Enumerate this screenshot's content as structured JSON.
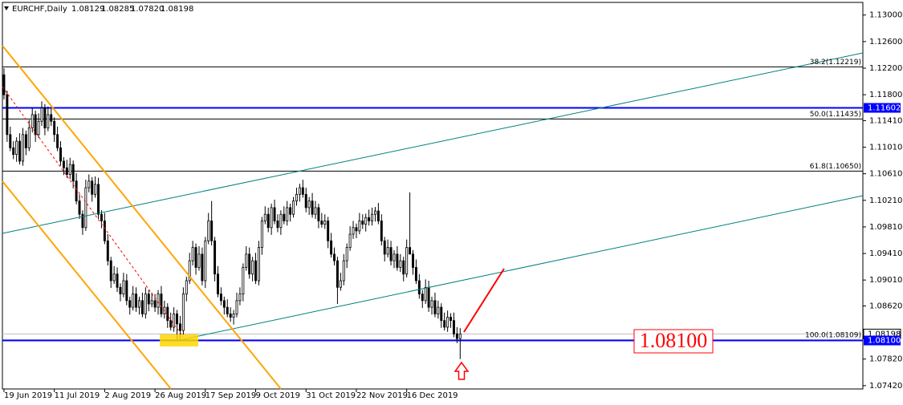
{
  "chart_data": {
    "type": "candlestick",
    "header": {
      "symbol": "EURCHF,Daily",
      "ohlc": [
        "1.08129",
        "1.08285",
        "1.07820",
        "1.08198"
      ]
    },
    "xlim": [
      -0.5,
      273
    ],
    "ylim": [
      1.0737,
      1.1319
    ],
    "xticks": [
      {
        "value": 0,
        "label": "19 Jun 2019"
      },
      {
        "value": 16,
        "label": "11 Jul 2019"
      },
      {
        "value": 32,
        "label": "2 Aug 2019"
      },
      {
        "value": 48,
        "label": "26 Aug 2019"
      },
      {
        "value": 64,
        "label": "17 Sep 2019"
      },
      {
        "value": 80,
        "label": "9 Oct 2019"
      },
      {
        "value": 96,
        "label": "31 Oct 2019"
      },
      {
        "value": 112,
        "label": "22 Nov 2019"
      },
      {
        "value": 128,
        "label": "16 Dec 2019"
      }
    ],
    "yticks": [
      {
        "value": 1.13,
        "label": "1.13000"
      },
      {
        "value": 1.126,
        "label": "1.12600"
      },
      {
        "value": 1.122,
        "label": "1.12200"
      },
      {
        "value": 1.118,
        "label": "1.11800"
      },
      {
        "value": 1.1141,
        "label": "1.11410"
      },
      {
        "value": 1.1101,
        "label": "1.11010"
      },
      {
        "value": 1.1061,
        "label": "1.10610"
      },
      {
        "value": 1.1021,
        "label": "1.10210"
      },
      {
        "value": 1.0981,
        "label": "1.09810"
      },
      {
        "value": 1.0941,
        "label": "1.09410"
      },
      {
        "value": 1.0901,
        "label": "1.09010"
      },
      {
        "value": 1.0862,
        "label": "1.08620"
      },
      {
        "value": 1.0782,
        "label": "1.07820"
      },
      {
        "value": 1.0742,
        "label": "1.07420"
      }
    ],
    "fib_levels": [
      {
        "value": 1.12219,
        "label": "38.2(1.12219)"
      },
      {
        "value": 1.11435,
        "label": "50.0(1.11435)"
      },
      {
        "value": 1.1065,
        "label": "61.8(1.10650)"
      },
      {
        "value": 1.08109,
        "label": "100.0(1.08109)"
      }
    ],
    "levels": [
      {
        "value": 1.11602,
        "label": "1.11602",
        "color": "#0000ff"
      },
      {
        "value": 1.081,
        "label": "1.08100",
        "color": "#0000ff"
      }
    ],
    "price_line": {
      "value": 1.08198,
      "label": "1.08198"
    },
    "annotation": "1.08100",
    "series": [
      {
        "name": "EURCHF,Daily",
        "up_color": "#ffffff",
        "down_color": "#000000",
        "ohlc": [
          [
            1.121,
            1.122,
            1.1173,
            1.118
          ],
          [
            1.118,
            1.1186,
            1.1109,
            1.112
          ],
          [
            1.112,
            1.1132,
            1.1095,
            1.11
          ],
          [
            1.11,
            1.111,
            1.1083,
            1.109
          ],
          [
            1.109,
            1.1116,
            1.1079,
            1.111
          ],
          [
            1.111,
            1.1122,
            1.1075,
            1.108
          ],
          [
            1.108,
            1.113,
            1.1073,
            1.112
          ],
          [
            1.112,
            1.1126,
            1.1089,
            1.11
          ],
          [
            1.11,
            1.1142,
            1.1095,
            1.113
          ],
          [
            1.113,
            1.116,
            1.1123,
            1.115
          ],
          [
            1.115,
            1.1156,
            1.1109,
            1.112
          ],
          [
            1.112,
            1.1152,
            1.1115,
            1.114
          ],
          [
            1.114,
            1.117,
            1.1133,
            1.116
          ],
          [
            1.116,
            1.1166,
            1.1119,
            1.113
          ],
          [
            1.113,
            1.1162,
            1.1125,
            1.115
          ],
          [
            1.115,
            1.116,
            1.1133,
            1.114
          ],
          [
            1.114,
            1.1146,
            1.1109,
            1.112
          ],
          [
            1.112,
            1.1132,
            1.1095,
            1.11
          ],
          [
            1.11,
            1.111,
            1.1073,
            1.108
          ],
          [
            1.108,
            1.1086,
            1.1059,
            1.107
          ],
          [
            1.107,
            1.1082,
            1.1055,
            1.106
          ],
          [
            1.106,
            1.1085,
            1.1053,
            1.1075
          ],
          [
            1.1075,
            1.1081,
            1.1039,
            1.105
          ],
          [
            1.105,
            1.1062,
            1.1015,
            1.102
          ],
          [
            1.102,
            1.103,
            1.0993,
            1.1
          ],
          [
            1.1,
            1.1006,
            1.0969,
            1.098
          ],
          [
            1.098,
            1.1052,
            1.0975,
            1.104
          ],
          [
            1.104,
            1.106,
            1.1033,
            1.105
          ],
          [
            1.105,
            1.1056,
            1.1019,
            1.103
          ],
          [
            1.103,
            1.1057,
            1.1025,
            1.1045
          ],
          [
            1.1045,
            1.1055,
            1.0993,
            1.1
          ],
          [
            1.1,
            1.1006,
            1.0979,
            1.099
          ],
          [
            1.099,
            1.1002,
            1.0955,
            1.096
          ],
          [
            1.096,
            1.097,
            1.0923,
            1.093
          ],
          [
            1.093,
            1.0936,
            1.0889,
            1.09
          ],
          [
            1.09,
            1.0922,
            1.0895,
            1.091
          ],
          [
            1.091,
            1.092,
            1.0883,
            1.089
          ],
          [
            1.089,
            1.0896,
            1.0869,
            1.088
          ],
          [
            1.088,
            1.0912,
            1.0875,
            1.09
          ],
          [
            1.09,
            1.091,
            1.0863,
            1.087
          ],
          [
            1.087,
            1.0876,
            1.0849,
            1.086
          ],
          [
            1.086,
            1.0892,
            1.0855,
            1.088
          ],
          [
            1.088,
            1.089,
            1.0853,
            1.086
          ],
          [
            1.086,
            1.0876,
            1.0849,
            1.087
          ],
          [
            1.087,
            1.0882,
            1.0845,
            1.085
          ],
          [
            1.085,
            1.089,
            1.0843,
            1.088
          ],
          [
            1.088,
            1.0886,
            1.0854,
            1.0865
          ],
          [
            1.0865,
            1.0882,
            1.086,
            1.087
          ],
          [
            1.087,
            1.088,
            1.0853,
            1.086
          ],
          [
            1.086,
            1.0886,
            1.0849,
            1.088
          ],
          [
            1.088,
            1.0892,
            1.0845,
            1.085
          ],
          [
            1.085,
            1.087,
            1.0843,
            1.086
          ],
          [
            1.086,
            1.0866,
            1.0829,
            1.084
          ],
          [
            1.084,
            1.0852,
            1.0825,
            1.083
          ],
          [
            1.083,
            1.086,
            1.0823,
            1.085
          ],
          [
            1.085,
            1.0856,
            1.0812,
            1.0835
          ],
          [
            1.0835,
            1.0847,
            1.0811,
            1.0825
          ],
          [
            1.0825,
            1.089,
            1.0818,
            1.088
          ],
          [
            1.088,
            1.0906,
            1.0869,
            1.09
          ],
          [
            1.09,
            1.0942,
            1.0895,
            1.093
          ],
          [
            1.093,
            1.096,
            1.0923,
            1.095
          ],
          [
            1.095,
            1.0956,
            1.0909,
            1.092
          ],
          [
            1.092,
            1.0952,
            1.0915,
            1.094
          ],
          [
            1.094,
            1.095,
            1.0893,
            1.09
          ],
          [
            1.09,
            1.0966,
            1.0889,
            1.096
          ],
          [
            1.096,
            1.1002,
            1.0955,
            1.099
          ],
          [
            1.099,
            1.102,
            1.0953,
            1.096
          ],
          [
            1.096,
            1.0966,
            1.0899,
            1.091
          ],
          [
            1.091,
            1.0922,
            1.0875,
            1.088
          ],
          [
            1.088,
            1.089,
            1.0863,
            1.087
          ],
          [
            1.087,
            1.0876,
            1.0849,
            1.086
          ],
          [
            1.086,
            1.0872,
            1.0845,
            1.085
          ],
          [
            1.085,
            1.086,
            1.0838,
            1.0845
          ],
          [
            1.0845,
            1.0856,
            1.0834,
            1.085
          ],
          [
            1.085,
            1.0882,
            1.0845,
            1.087
          ],
          [
            1.087,
            1.089,
            1.0863,
            1.088
          ],
          [
            1.088,
            1.0926,
            1.0869,
            1.092
          ],
          [
            1.092,
            1.0952,
            1.0915,
            1.094
          ],
          [
            1.094,
            1.095,
            1.0903,
            1.091
          ],
          [
            1.091,
            1.0936,
            1.0899,
            1.093
          ],
          [
            1.093,
            1.0942,
            1.0895,
            1.09
          ],
          [
            1.09,
            1.096,
            1.0893,
            1.095
          ],
          [
            1.095,
            1.0996,
            1.0939,
            1.099
          ],
          [
            1.099,
            1.1012,
            1.0985,
            1.1
          ],
          [
            1.1,
            1.101,
            1.0973,
            1.098
          ],
          [
            1.098,
            1.1016,
            1.0969,
            1.101
          ],
          [
            1.101,
            1.1022,
            1.0985,
            1.099
          ],
          [
            1.099,
            1.1,
            1.0973,
            1.098
          ],
          [
            1.098,
            1.1006,
            1.0969,
            1.1
          ],
          [
            1.1,
            1.1012,
            1.0985,
            1.099
          ],
          [
            1.099,
            1.102,
            1.0983,
            1.101
          ],
          [
            1.101,
            1.1016,
            1.0989,
            1.1
          ],
          [
            1.1,
            1.1026,
            1.0995,
            1.102
          ],
          [
            1.102,
            1.104,
            1.1013,
            1.103
          ],
          [
            1.103,
            1.1046,
            1.1019,
            1.104
          ],
          [
            1.104,
            1.1052,
            1.1025,
            1.103
          ],
          [
            1.103,
            1.104,
            1.1003,
            1.101
          ],
          [
            1.101,
            1.1026,
            1.0999,
            1.102
          ],
          [
            1.102,
            1.1032,
            1.0995,
            1.1
          ],
          [
            1.1,
            1.102,
            1.0993,
            1.101
          ],
          [
            1.101,
            1.1016,
            1.0979,
            1.099
          ],
          [
            1.099,
            1.1002,
            1.098,
            1.0985
          ],
          [
            1.0985,
            1.1,
            1.0978,
            1.099
          ],
          [
            1.099,
            1.0996,
            1.0949,
            1.096
          ],
          [
            1.096,
            1.0972,
            1.0935,
            1.094
          ],
          [
            1.094,
            1.095,
            1.0923,
            1.093
          ],
          [
            1.093,
            1.0936,
            1.0865,
            1.089
          ],
          [
            1.089,
            1.0912,
            1.0885,
            1.09
          ],
          [
            1.09,
            1.094,
            1.0893,
            1.093
          ],
          [
            1.093,
            1.0956,
            1.0919,
            1.095
          ],
          [
            1.095,
            1.0982,
            1.0945,
            1.097
          ],
          [
            1.097,
            1.099,
            1.0963,
            1.098
          ],
          [
            1.098,
            1.0986,
            1.0964,
            1.0975
          ],
          [
            1.0975,
            1.1002,
            1.097,
            1.099
          ],
          [
            1.099,
            1.1,
            1.0978,
            1.0985
          ],
          [
            1.0985,
            1.1001,
            1.0974,
            1.0995
          ],
          [
            1.0995,
            1.1007,
            1.0983,
            1.099
          ],
          [
            1.099,
            1.101,
            1.0983,
            1.1
          ],
          [
            1.1,
            1.1011,
            1.0989,
            1.1005
          ],
          [
            1.1005,
            1.1017,
            1.0985,
            1.099
          ],
          [
            1.099,
            1.1,
            1.0953,
            1.096
          ],
          [
            1.096,
            1.0966,
            1.0929,
            1.094
          ],
          [
            1.094,
            1.0962,
            1.0935,
            1.095
          ],
          [
            1.095,
            1.096,
            1.0923,
            1.093
          ],
          [
            1.093,
            1.0946,
            1.0919,
            1.094
          ],
          [
            1.094,
            1.0952,
            1.0915,
            1.092
          ],
          [
            1.092,
            1.094,
            1.0913,
            1.093
          ],
          [
            1.093,
            1.0936,
            1.0899,
            1.091
          ],
          [
            1.091,
            1.0962,
            1.0905,
            1.095
          ],
          [
            1.095,
            1.1033,
            1.0943,
            1.094
          ],
          [
            1.094,
            1.0946,
            1.0909,
            1.092
          ],
          [
            1.092,
            1.0932,
            1.0895,
            1.09
          ],
          [
            1.09,
            1.091,
            1.0873,
            1.088
          ],
          [
            1.088,
            1.0886,
            1.0859,
            1.087
          ],
          [
            1.087,
            1.0902,
            1.0865,
            1.089
          ],
          [
            1.089,
            1.09,
            1.0853,
            1.086
          ],
          [
            1.086,
            1.0876,
            1.0849,
            1.087
          ],
          [
            1.087,
            1.0882,
            1.0845,
            1.085
          ],
          [
            1.085,
            1.087,
            1.0843,
            1.086
          ],
          [
            1.086,
            1.0866,
            1.0829,
            1.084
          ],
          [
            1.084,
            1.0852,
            1.0825,
            1.083
          ],
          [
            1.083,
            1.0855,
            1.0823,
            1.0845
          ],
          [
            1.0845,
            1.0851,
            1.0829,
            1.084
          ],
          [
            1.084,
            1.0852,
            1.0815,
            1.082
          ],
          [
            1.082,
            1.083,
            1.0806,
            1.08129
          ],
          [
            1.08129,
            1.08285,
            1.0782,
            1.08198
          ]
        ]
      }
    ]
  }
}
